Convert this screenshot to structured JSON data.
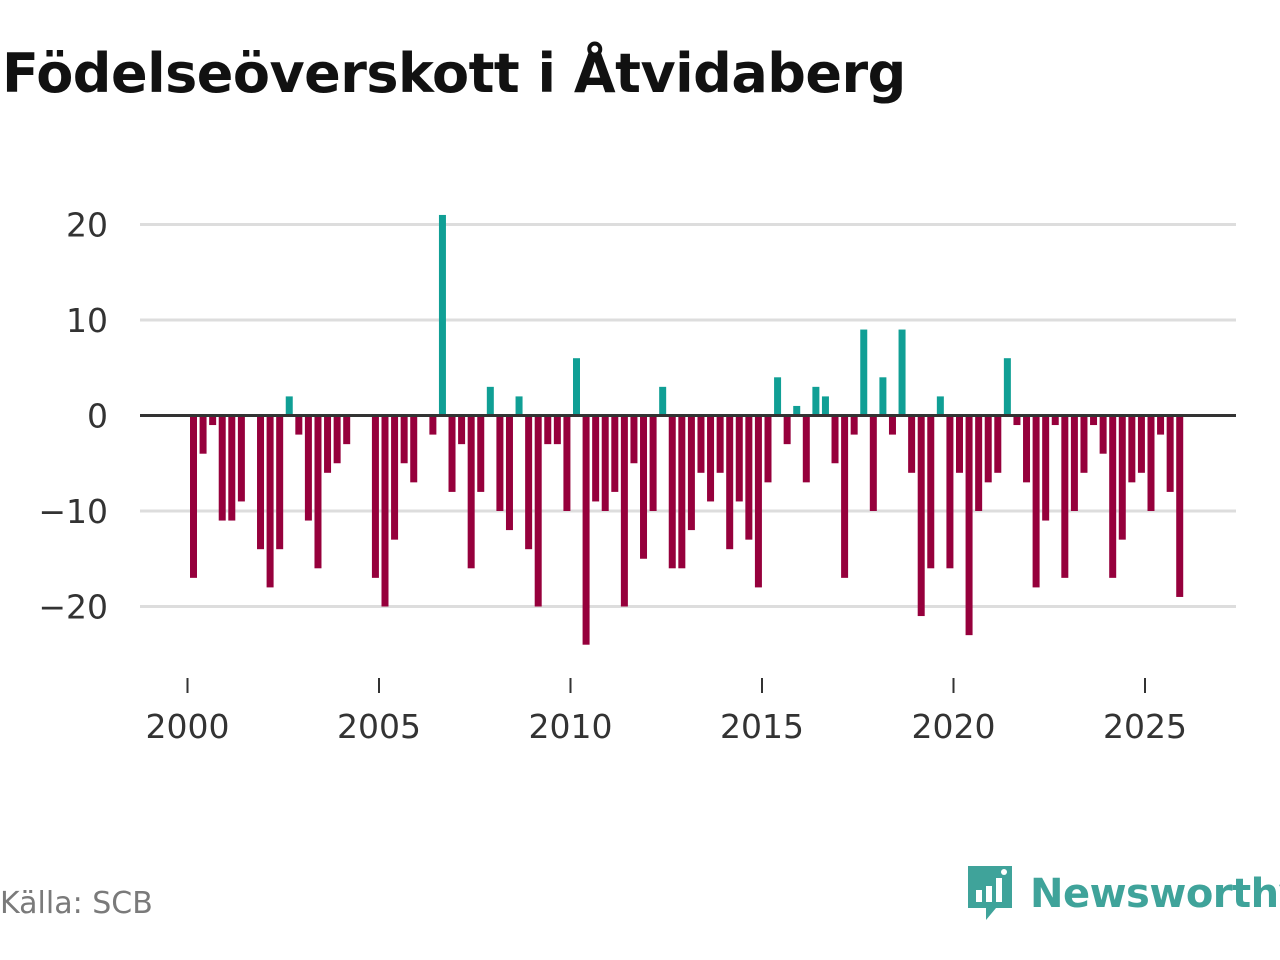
{
  "title": "Födelseöverskott i Åtvidaberg",
  "source": "Källa: SCB",
  "brand": {
    "name": "Newsworthy",
    "icon": "newsworthy-logo-icon",
    "color": "#3fa39a"
  },
  "colors": {
    "positive": "#109f95",
    "negative": "#96003c",
    "grid": "#dddddd",
    "zero": "#333333"
  },
  "chart_data": {
    "type": "bar",
    "title": "Födelseöverskott i Åtvidaberg",
    "xlabel": "",
    "ylabel": "",
    "ylim": [
      -27,
      22
    ],
    "xlim": [
      1999.25,
      2027.2
    ],
    "yticks": [
      20,
      10,
      0,
      -10,
      -20
    ],
    "ytick_labels": [
      "20",
      "10",
      "0",
      "−10",
      "−20"
    ],
    "xticks": [
      2000,
      2005,
      2010,
      2015,
      2020,
      2025
    ],
    "xtick_labels": [
      "2000",
      "2005",
      "2010",
      "2015",
      "2020",
      "2025"
    ],
    "frequency": "monthly",
    "start": 2000.0,
    "step": 0.25,
    "values": [
      -17,
      -4,
      -1,
      -11,
      -11,
      -9,
      null,
      -14,
      -18,
      -14,
      2,
      -2,
      -11,
      -16,
      -6,
      -5,
      -3,
      null,
      null,
      -17,
      -20,
      -13,
      -5,
      -7,
      null,
      -2,
      21,
      -8,
      -3,
      -16,
      -8,
      3,
      -10,
      -12,
      2,
      -14,
      -20,
      -3,
      -3,
      -10,
      6,
      -24,
      -9,
      -10,
      -8,
      -20,
      -5,
      -15,
      -10,
      3,
      -16,
      -16,
      -12,
      -6,
      -9,
      -6,
      -14,
      -9,
      -13,
      -18,
      -7,
      4,
      -3,
      1,
      -7,
      3,
      2,
      -5,
      -17,
      -2,
      9,
      -10,
      4,
      -2,
      9,
      -6,
      -21,
      -16,
      2,
      -16,
      -6,
      -23,
      -10,
      -7,
      -6,
      6,
      -1,
      -7,
      -18,
      -11,
      -1,
      -17,
      -10,
      -6,
      -1,
      -4,
      -17,
      -13,
      -7,
      -6,
      -10,
      -2,
      -8,
      -19
    ]
  }
}
